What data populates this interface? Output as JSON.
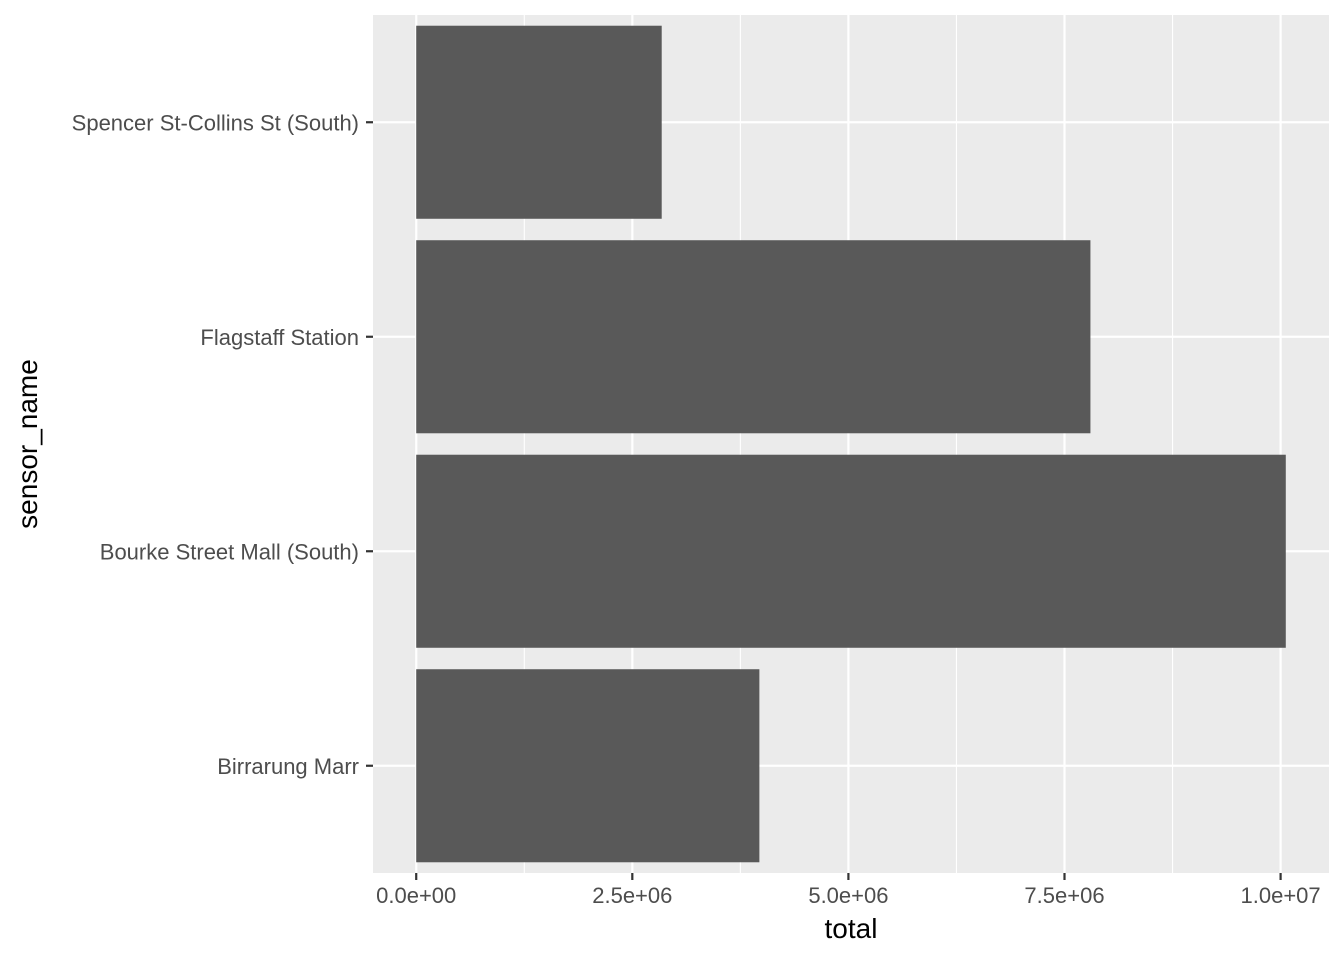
{
  "chart_data": {
    "type": "bar",
    "orientation": "horizontal",
    "xlabel": "total",
    "ylabel": "sensor_name",
    "categories": [
      "Birrarung Marr",
      "Bourke Street Mall (South)",
      "Flagstaff Station",
      "Spencer St-Collins St (South)"
    ],
    "values": [
      3970000,
      10060000,
      7800000,
      2840000
    ],
    "xlim": [
      -500000,
      10560000
    ],
    "x_ticks": [
      0,
      2500000,
      5000000,
      7500000,
      10000000
    ],
    "x_tick_labels": [
      "0.0e+00",
      "2.5e+06",
      "5.0e+06",
      "7.5e+06",
      "1.0e+07"
    ],
    "grid": true,
    "legend": "none",
    "colors": {
      "bar": "#595959",
      "panel": "#ebebeb",
      "grid": "#ffffff"
    }
  }
}
